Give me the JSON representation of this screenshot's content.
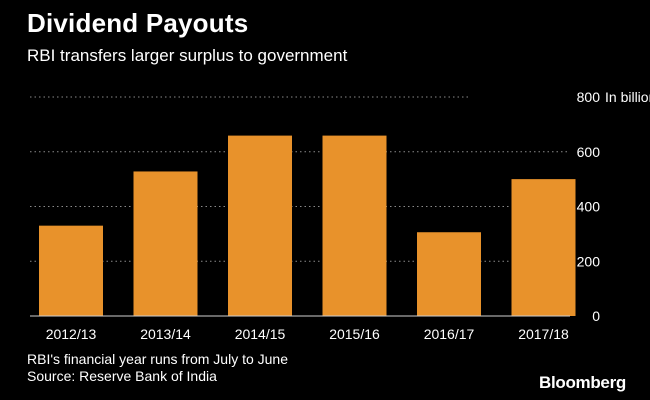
{
  "header": {
    "title": "Dividend Payouts",
    "subtitle": "RBI transfers larger surplus to government"
  },
  "footer": {
    "note": "RBI's financial year runs from July to June",
    "source": "Source: Reserve Bank of India",
    "brand": "Bloomberg"
  },
  "colors": {
    "background": "#000000",
    "bar": "#E8922B",
    "grid": "#8a8a8a",
    "text": "#ffffff"
  },
  "chart_data": {
    "type": "bar",
    "title": "Dividend Payouts",
    "subtitle": "RBI transfers larger surplus to government",
    "categories": [
      "2012/13",
      "2013/14",
      "2014/15",
      "2015/16",
      "2016/17",
      "2017/18"
    ],
    "values": [
      330,
      528,
      659,
      659,
      306,
      500
    ],
    "ylabel": "In billion rupees",
    "unit_label": "In billion rupees",
    "ylim": [
      0,
      800
    ],
    "yticks": [
      0,
      200,
      400,
      600,
      800
    ],
    "grid": true,
    "y_axis_side": "right"
  }
}
